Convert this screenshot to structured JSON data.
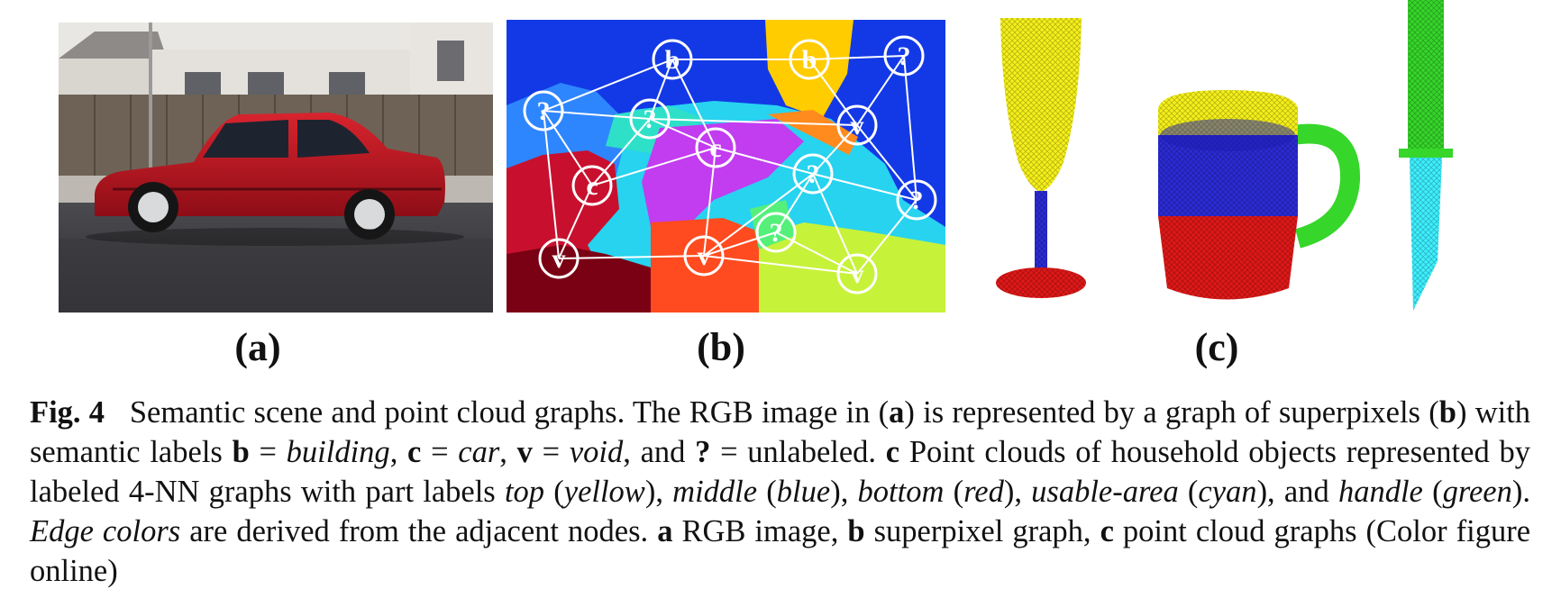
{
  "figure": {
    "panels": [
      {
        "id": "a",
        "label": "(a)",
        "content": "photo of a red sedan parked on a street in front of houses"
      },
      {
        "id": "b",
        "label": "(b)",
        "content": "superpixel graph with labeled nodes"
      },
      {
        "id": "c",
        "label": "(c)",
        "content": "point cloud graphs of a wine glass, a mug and a knife"
      }
    ],
    "graph_nodes": [
      {
        "label": "b",
        "region": "building"
      },
      {
        "label": "b",
        "region": "building"
      },
      {
        "label": "?",
        "region": "unlabeled"
      },
      {
        "label": "?",
        "region": "unlabeled"
      },
      {
        "label": "?",
        "region": "unlabeled"
      },
      {
        "label": "c",
        "region": "car"
      },
      {
        "label": "c",
        "region": "car"
      },
      {
        "label": "v",
        "region": "void"
      },
      {
        "label": "?",
        "region": "unlabeled"
      },
      {
        "label": "?",
        "region": "unlabeled"
      },
      {
        "label": "v",
        "region": "void"
      },
      {
        "label": "v",
        "region": "void"
      },
      {
        "label": "?",
        "region": "unlabeled"
      },
      {
        "label": "v",
        "region": "void"
      }
    ],
    "part_colors": {
      "top": "#f5f01a",
      "middle": "#2b2bd6",
      "bottom": "#e01818",
      "usable_area": "#3ef0ff",
      "handle": "#36d62a"
    },
    "caption": {
      "fig_label": "Fig. 4",
      "s1": "Semantic scene and point cloud graphs. The ",
      "rgb1": "RGB",
      "s2": " image in (",
      "a1": "a",
      "s3": ") is represented by a graph of superpixels (",
      "b1": "b",
      "s4": ") with semantic labels ",
      "lb": "b",
      "eq1": " = ",
      "building": "building",
      "comma1": ", ",
      "lc": "c",
      "eq2": " = ",
      "car": "car",
      "comma2": ", ",
      "lv": "v",
      "eq3": " = ",
      "void": "void",
      "s5": ", and ",
      "lq": "?",
      "s6": " = unlabeled. ",
      "c1": "c",
      "s7": " Point clouds of household objects represented by labeled 4-",
      "nn": "NN",
      "s8": " graphs with part labels ",
      "top": "top",
      "p1": " (",
      "yellow": "yellow",
      "p2": "), ",
      "middle": "middle",
      "p3": " (",
      "blue": "blue",
      "p4": "), ",
      "bottom": "bottom",
      "p5": " (",
      "red": "red",
      "p6": "), ",
      "usable": "usable-area",
      "p7": " (",
      "cyan": "cyan",
      "p8": "), and ",
      "handle": "handle",
      "p9": " (",
      "green": "green",
      "p10": "). ",
      "edge": "Edge colors",
      "s9": " are derived from the adjacent nodes. ",
      "a2": "a",
      "s10": " ",
      "rgb2": "RGB",
      "s11": " image, ",
      "b2": "b",
      "s12": " superpixel graph, ",
      "c2": "c",
      "s13": " point cloud graphs (Color figure online)"
    }
  }
}
